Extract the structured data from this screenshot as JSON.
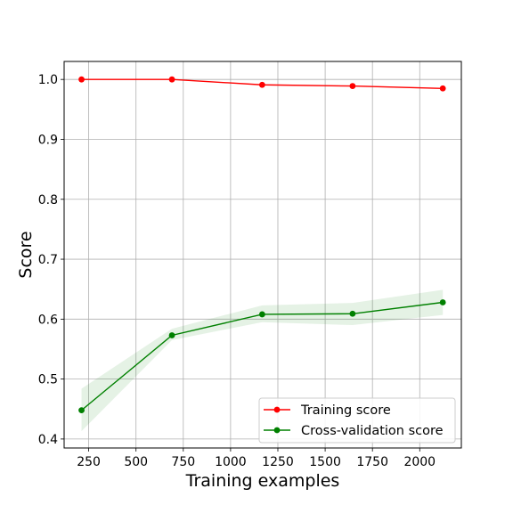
{
  "chart_data": {
    "type": "line",
    "title": "",
    "xlabel": "Training examples",
    "ylabel": "Score",
    "xlim": [
      120,
      2220
    ],
    "ylim": [
      0.385,
      1.03
    ],
    "grid": true,
    "legend_position": "lower-right",
    "x_ticks": [
      250,
      500,
      750,
      1000,
      1250,
      1500,
      1750,
      2000
    ],
    "y_ticks": [
      0.4,
      0.5,
      0.6,
      0.7,
      0.8,
      0.9,
      1.0
    ],
    "x_tick_labels": [
      "250",
      "500",
      "750",
      "1000",
      "1250",
      "1500",
      "1750",
      "2000"
    ],
    "y_tick_labels": [
      "0.4",
      "0.5",
      "0.6",
      "0.7",
      "0.8",
      "0.9",
      "1.0"
    ],
    "x": [
      212,
      690,
      1167,
      1645,
      2122
    ],
    "series": [
      {
        "name": "Training score",
        "color": "#ff0000",
        "values": [
          1.0,
          1.0,
          0.991,
          0.989,
          0.985
        ],
        "band_lower": [
          1.0,
          1.0,
          0.99,
          0.988,
          0.984
        ],
        "band_upper": [
          1.0,
          1.0,
          0.992,
          0.99,
          0.986
        ]
      },
      {
        "name": "Cross-validation score",
        "color": "#008000",
        "values": [
          0.448,
          0.573,
          0.608,
          0.609,
          0.628
        ],
        "band_lower": [
          0.413,
          0.565,
          0.595,
          0.59,
          0.607
        ],
        "band_upper": [
          0.484,
          0.584,
          0.623,
          0.627,
          0.649
        ]
      }
    ]
  }
}
